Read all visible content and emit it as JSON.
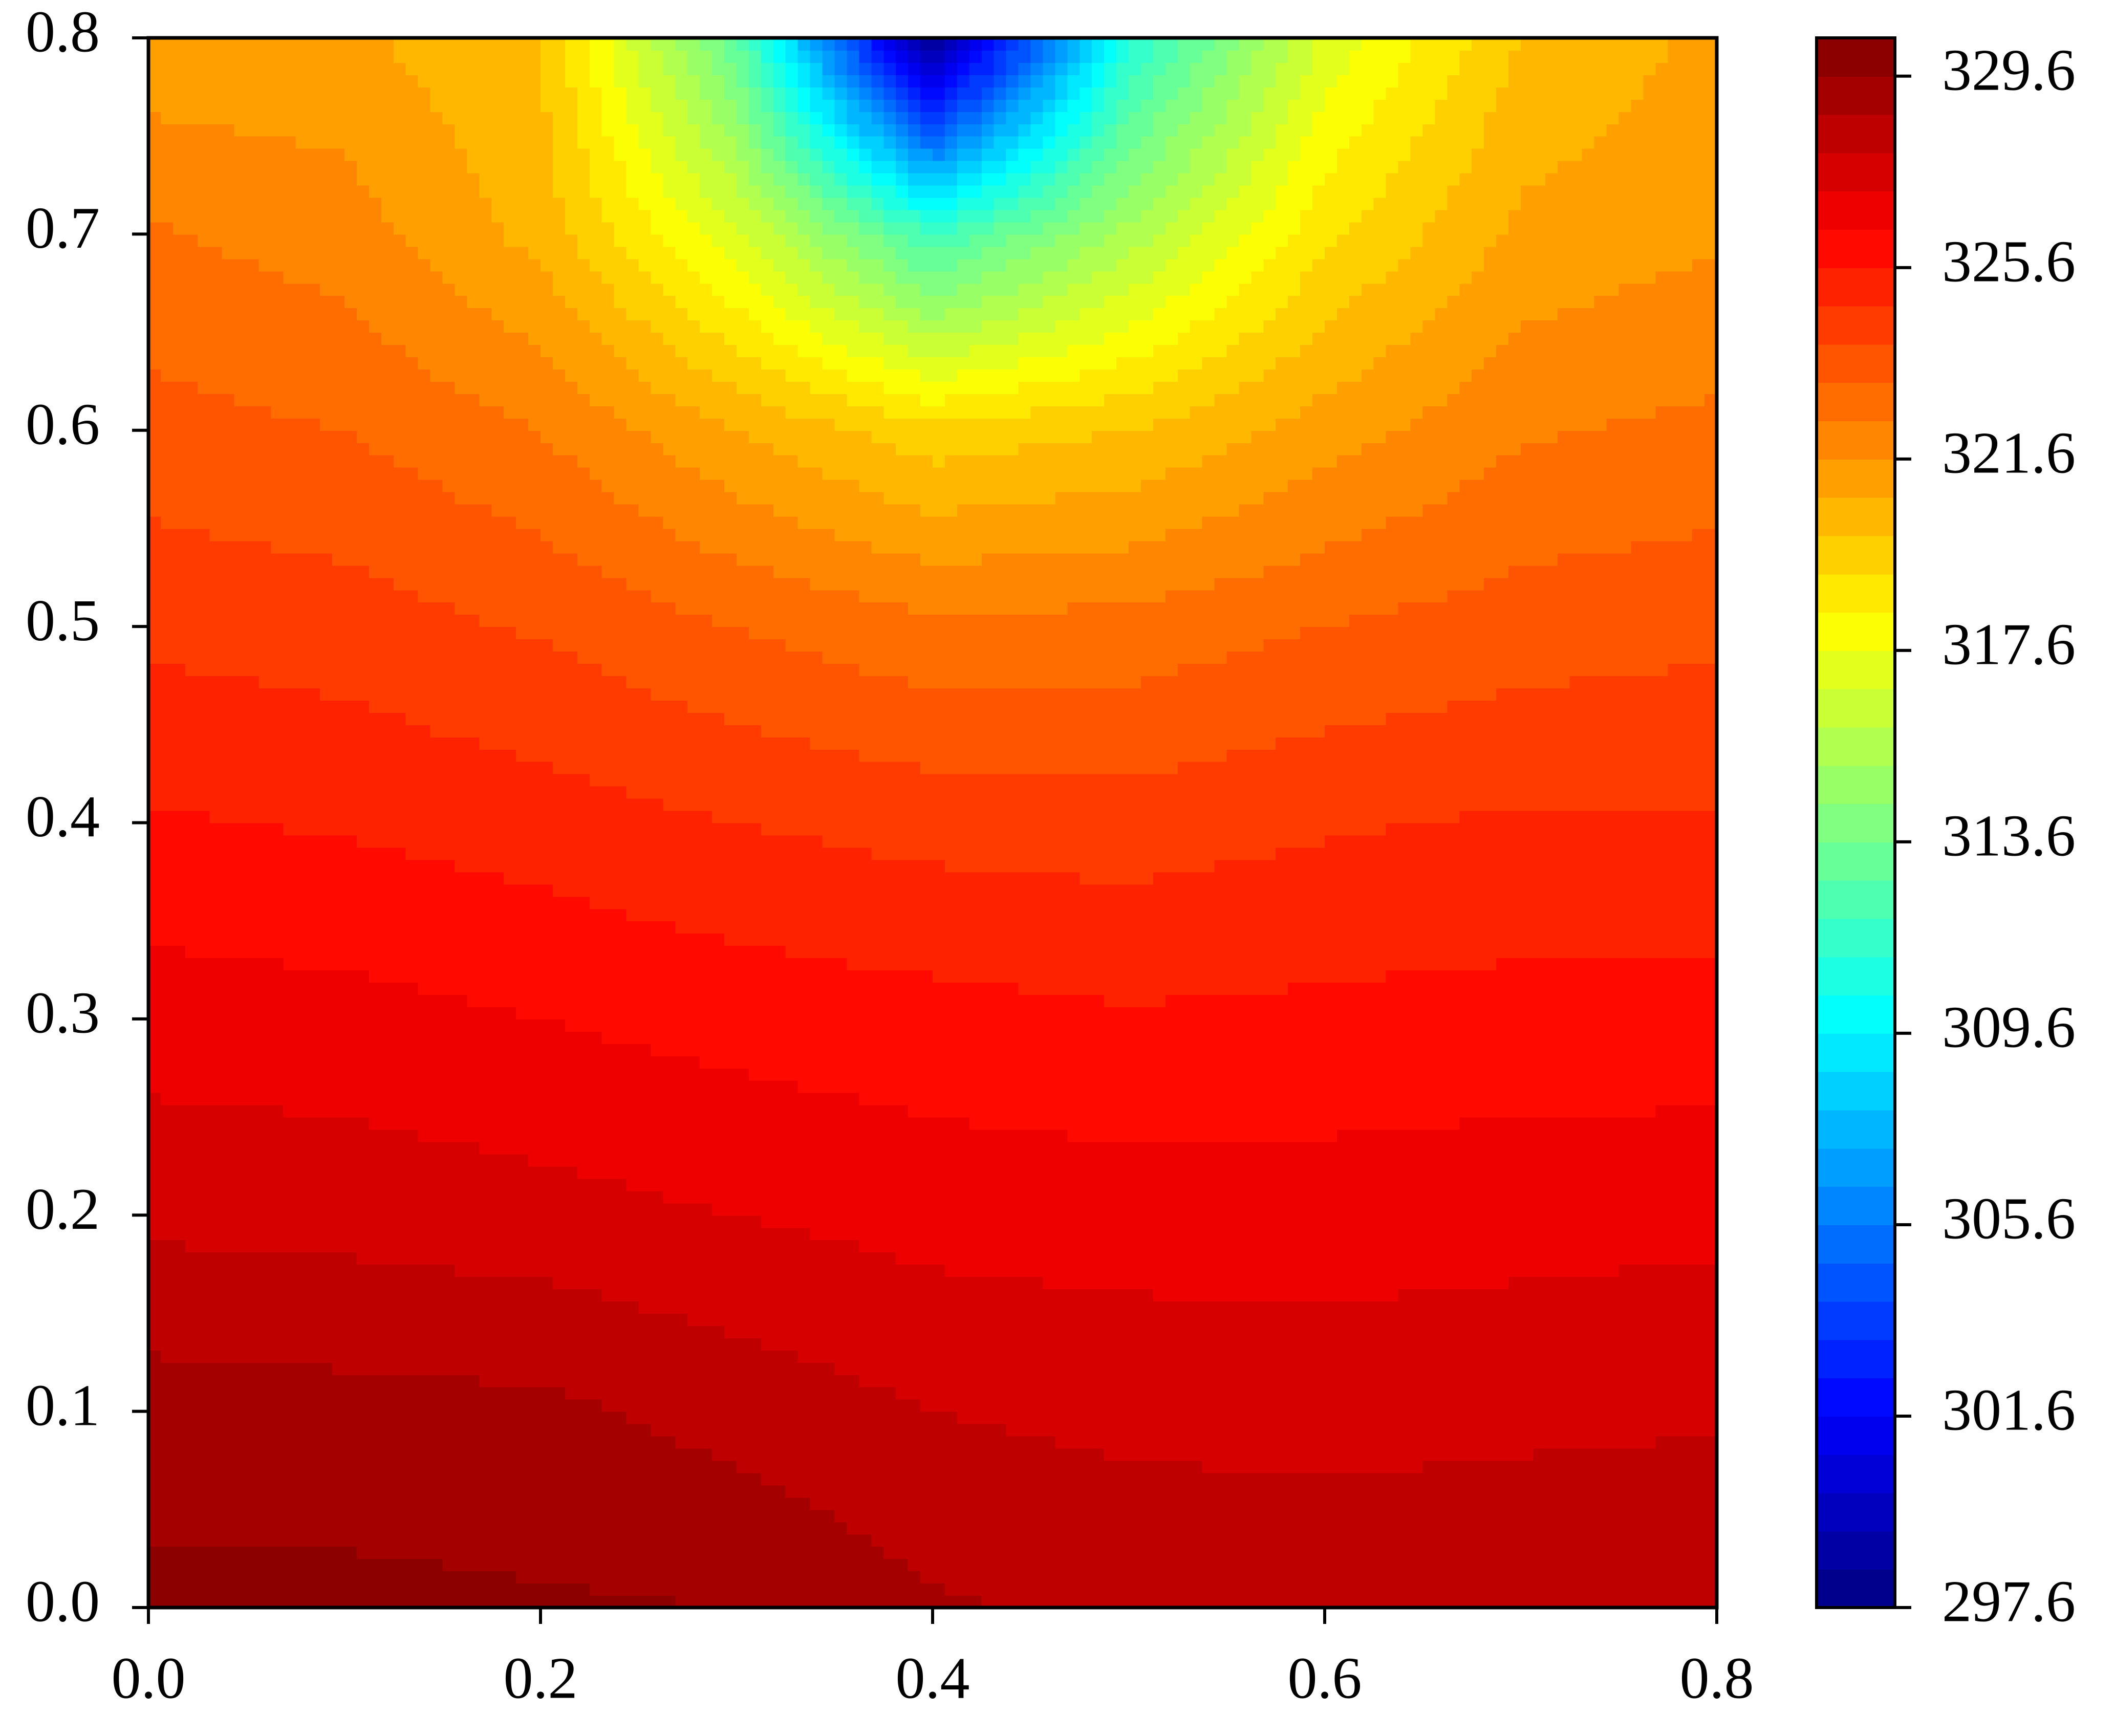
{
  "chart_data": {
    "type": "contour",
    "colormap": "jet",
    "x": [
      0,
      0.1,
      0.2,
      0.3,
      0.4,
      0.5,
      0.6,
      0.7,
      0.8
    ],
    "y": [
      0,
      0.1,
      0.2,
      0.3,
      0.4,
      0.5,
      0.6,
      0.7,
      0.8
    ],
    "z": [
      [
        329.8,
        329.8,
        329.7,
        329.6,
        328.9,
        328.6,
        328.6,
        328.7,
        328.7
      ],
      [
        329.2,
        329.1,
        329.0,
        328.5,
        328.0,
        327.8,
        327.7,
        327.8,
        327.9
      ],
      [
        327.8,
        327.7,
        327.5,
        327.2,
        326.9,
        326.8,
        326.8,
        326.9,
        327.0
      ],
      [
        326.8,
        326.7,
        326.4,
        326.1,
        325.9,
        325.7,
        325.8,
        325.9,
        325.9
      ],
      [
        325.7,
        325.5,
        325.2,
        324.8,
        324.5,
        324.4,
        324.7,
        324.9,
        324.9
      ],
      [
        324.6,
        324.4,
        323.9,
        323.2,
        322.6,
        322.7,
        323.2,
        323.6,
        323.8
      ],
      [
        323.5,
        323.2,
        322.4,
        320.8,
        319.5,
        320.0,
        321.2,
        322.3,
        322.6
      ],
      [
        322.5,
        322.0,
        320.5,
        317.0,
        312.0,
        315.5,
        319.0,
        321.0,
        321.5
      ],
      [
        321.0,
        321.0,
        320.0,
        313.0,
        297.6,
        311.0,
        317.0,
        320.0,
        321.0
      ]
    ],
    "xlim": [
      0,
      0.8
    ],
    "ylim": [
      0,
      0.8
    ],
    "xticks": [
      {
        "value": 0,
        "label": "0.0"
      },
      0.2,
      0.4,
      0.6,
      0.8
    ],
    "yticks": [
      {
        "value": 0,
        "label": "0.0"
      },
      0.1,
      0.2,
      0.3,
      0.4,
      0.5,
      0.6,
      0.7,
      0.8
    ],
    "clim": [
      297.6,
      330.4
    ],
    "level_step": 0.8,
    "cticks": [
      297.6,
      301.6,
      305.6,
      309.6,
      313.6,
      317.6,
      321.6,
      325.6,
      329.6
    ]
  }
}
